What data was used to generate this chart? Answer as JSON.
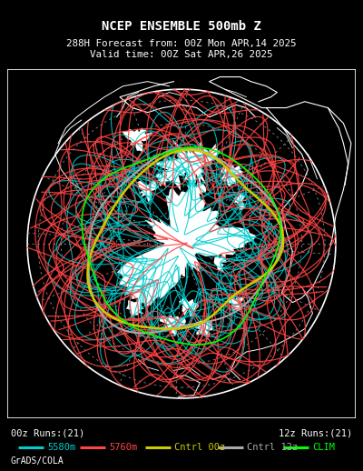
{
  "title_line1": "NCEP ENSEMBLE 500mb Z",
  "title_line2": "288H Forecast from: 00Z Mon APR,14 2025",
  "title_line3": "Valid time: 00Z Sat APR,26 2025",
  "bg_color": "#000000",
  "legend_left": "00z Runs:(21)",
  "legend_right": "12z Runs:(21)",
  "legend_items": [
    {
      "label": "5580m",
      "color": "#00CCCC"
    },
    {
      "label": "5760m",
      "color": "#FF4444"
    },
    {
      "label": "Cntrl 00z",
      "color": "#CCCC00"
    },
    {
      "label": "Cntrl 12z",
      "color": "#AAAAAA"
    },
    {
      "label": "CLIM",
      "color": "#00FF00"
    }
  ],
  "credit": "GrADS/COLA",
  "cyan_color": "#00CCCC",
  "red_color": "#FF4444",
  "yellow_color": "#CCCC00",
  "gray_color": "#AAAAAA",
  "green_color": "#00FF00",
  "white_color": "#FFFFFF",
  "n_cyan_lines": 21,
  "n_red_lines": 21,
  "seed": 42
}
